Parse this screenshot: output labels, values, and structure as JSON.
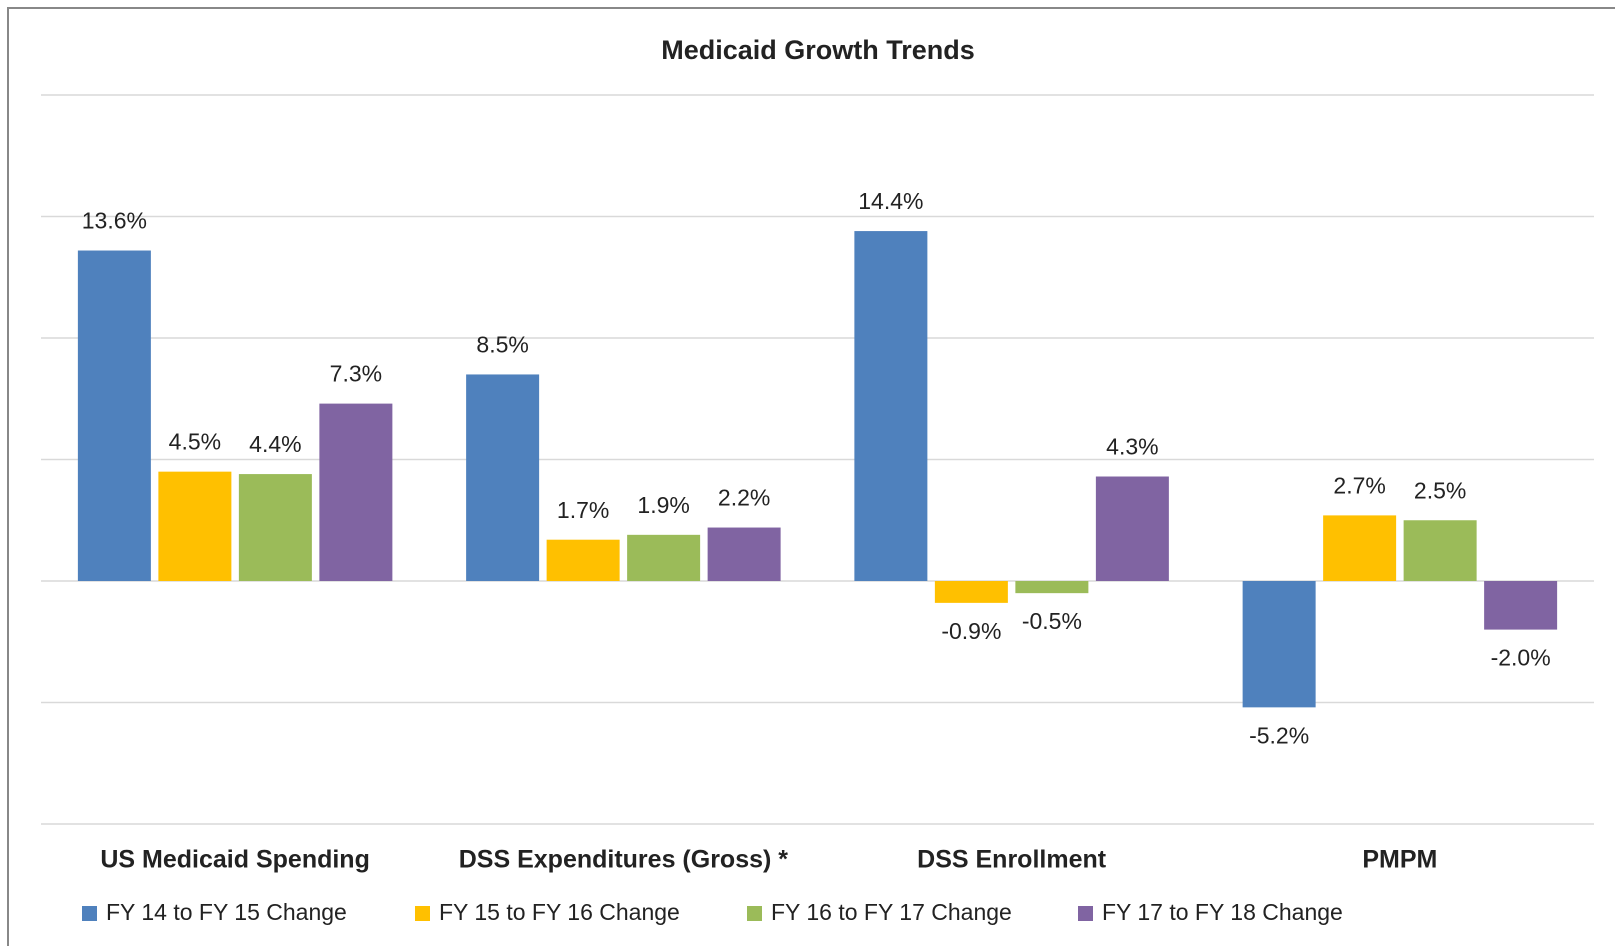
{
  "chart_data": {
    "type": "bar",
    "title": "Medicaid Growth Trends",
    "categories": [
      "US Medicaid Spending",
      "DSS Expenditures (Gross) *",
      "DSS Enrollment",
      "PMPM"
    ],
    "series": [
      {
        "name": "FY 14 to FY 15 Change",
        "color": "#4f81bd",
        "values": [
          13.6,
          8.5,
          14.4,
          -5.2
        ],
        "value_labels": [
          "13.6%",
          "8.5%",
          "14.4%",
          "-5.2%"
        ]
      },
      {
        "name": "FY 15 to FY 16 Change",
        "color": "#ffc000",
        "values": [
          4.5,
          1.7,
          -0.9,
          2.7
        ],
        "value_labels": [
          "4.5%",
          "1.7%",
          "-0.9%",
          "2.7%"
        ]
      },
      {
        "name": "FY 16 to FY 17 Change",
        "color": "#9bbb59",
        "values": [
          4.4,
          1.9,
          -0.5,
          2.5
        ],
        "value_labels": [
          "4.4%",
          "1.9%",
          "-0.5%",
          "2.5%"
        ]
      },
      {
        "name": "FY 17 to FY 18 Change",
        "color": "#8064a2",
        "values": [
          7.3,
          2.2,
          4.3,
          -2.0
        ],
        "value_labels": [
          "7.3%",
          "2.2%",
          "4.3%",
          "-2.0%"
        ]
      }
    ],
    "ylim": [
      -10,
      20
    ],
    "yticks": [
      -10,
      -5,
      0,
      5,
      10,
      15,
      20
    ],
    "grid": true,
    "legend": "bottom"
  }
}
